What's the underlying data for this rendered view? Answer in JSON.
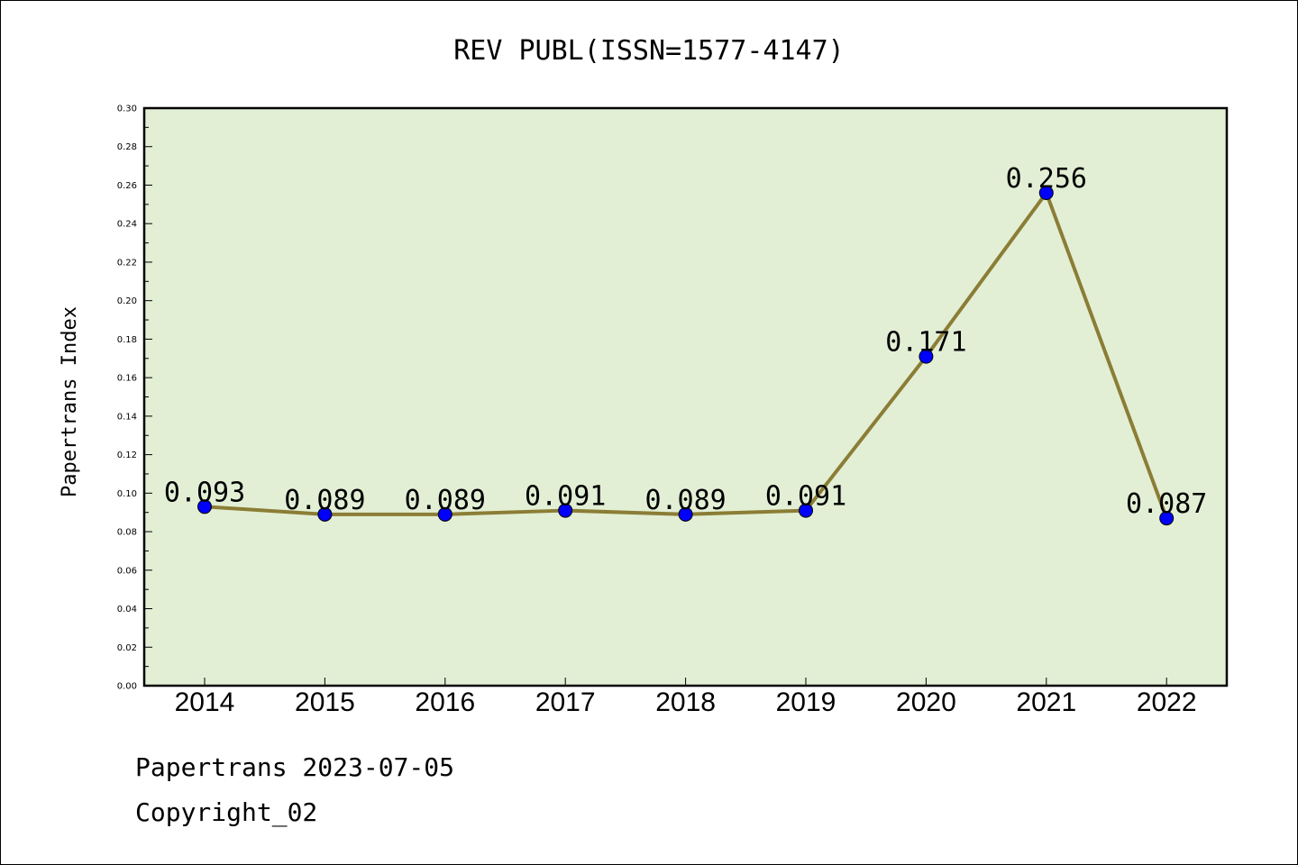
{
  "footer": {
    "line1": "Papertrans 2023-07-05",
    "line2": "Copyright_02"
  },
  "colors": {
    "plot_background": "#e2efd5",
    "line": "#8b7d35",
    "marker": "#0000ff"
  },
  "chart_data": {
    "type": "line",
    "title": "REV PUBL(ISSN=1577-4147)",
    "xlabel": "",
    "ylabel": "Papertrans Index",
    "categories": [
      "2014",
      "2015",
      "2016",
      "2017",
      "2018",
      "2019",
      "2020",
      "2021",
      "2022"
    ],
    "values": [
      0.093,
      0.089,
      0.089,
      0.091,
      0.089,
      0.091,
      0.171,
      0.256,
      0.087
    ],
    "data_labels": [
      "0.093",
      "0.089",
      "0.089",
      "0.091",
      "0.089",
      "0.091",
      "0.171",
      "0.256",
      "0.087"
    ],
    "ylim": [
      0,
      0.3
    ],
    "yticks": [
      "0.00",
      "0.02",
      "0.04",
      "0.06",
      "0.08",
      "0.10",
      "0.12",
      "0.14",
      "0.16",
      "0.18",
      "0.20",
      "0.22",
      "0.24",
      "0.26",
      "0.28",
      "0.30"
    ],
    "grid": false,
    "legend": "none"
  }
}
